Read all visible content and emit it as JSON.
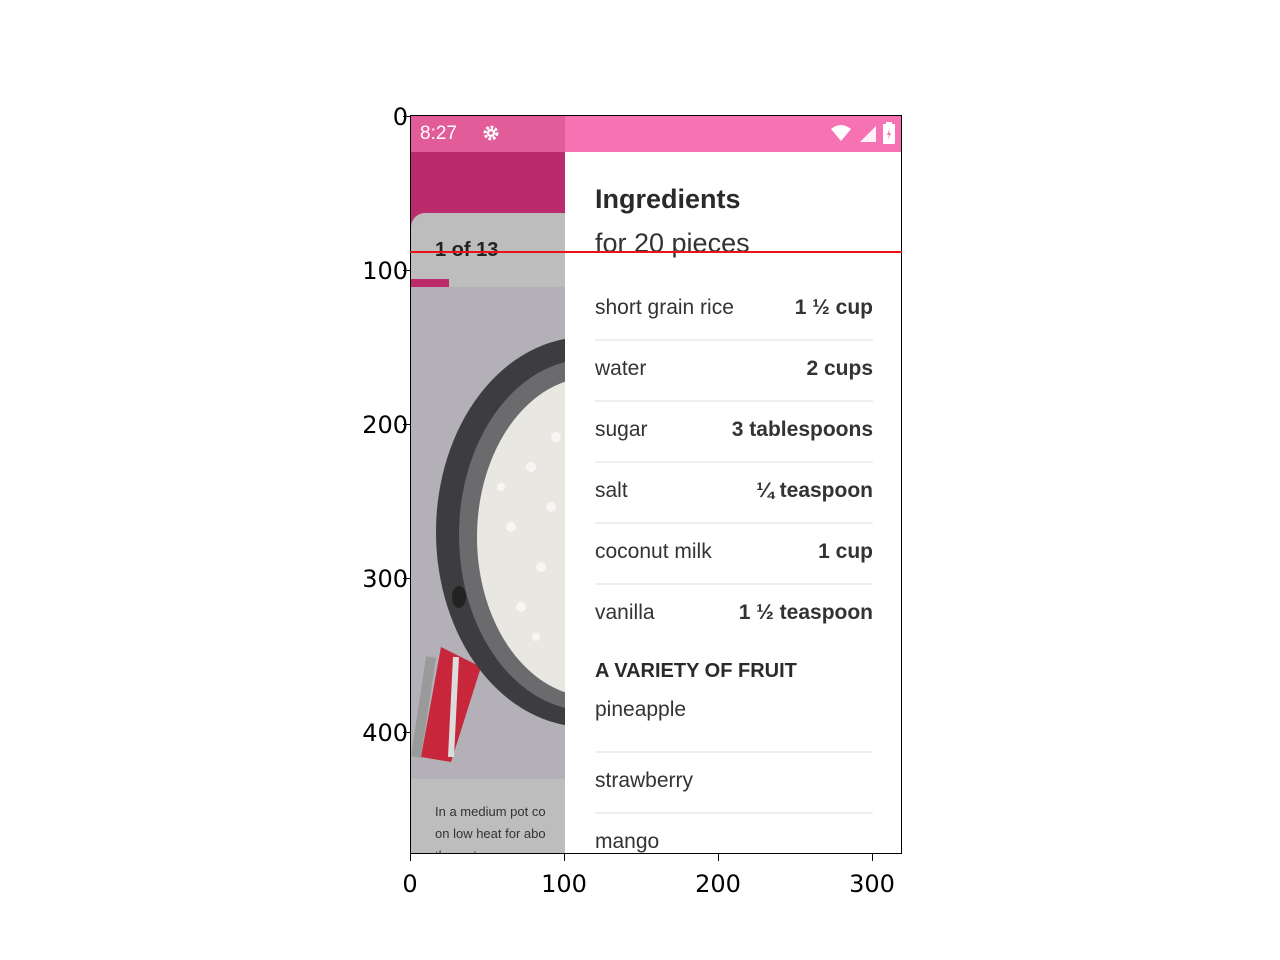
{
  "axes": {
    "y_ticks": [
      "0",
      "100",
      "200",
      "300",
      "400"
    ],
    "x_ticks": [
      "0",
      "100",
      "200",
      "300"
    ]
  },
  "status_bar": {
    "time": "8:27",
    "icons": [
      "gear-icon",
      "wifi-icon",
      "signal-icon",
      "battery-icon"
    ],
    "left_color": "#e25c9a",
    "right_color": "#f672b3"
  },
  "step_card": {
    "counter": "1 of 13",
    "caption_lines": [
      "In a medium pot co",
      "on low heat for abo",
      "the water."
    ],
    "accent": "#bb2b6b"
  },
  "ingredients": {
    "title": "Ingredients",
    "subtitle": "for 20 pieces",
    "items": [
      {
        "name": "short grain rice",
        "qty": "1 ½ cup"
      },
      {
        "name": "water",
        "qty": "2 cups"
      },
      {
        "name": "sugar",
        "qty": "3 tablespoons"
      },
      {
        "name": "salt",
        "qty": "¼ teaspoon"
      },
      {
        "name": "coconut milk",
        "qty": "1 cup"
      },
      {
        "name": "vanilla",
        "qty": "1 ½ teaspoon"
      }
    ],
    "section_title": "A VARIETY OF FRUIT",
    "fruit": [
      "pineapple",
      "strawberry",
      "mango"
    ]
  },
  "overlay": {
    "line_color": "#e8141c"
  }
}
